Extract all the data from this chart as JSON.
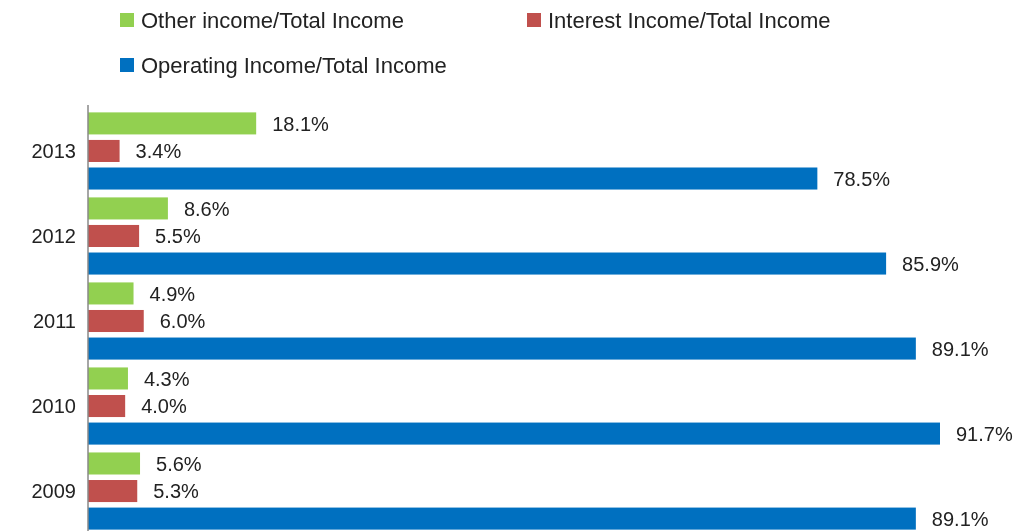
{
  "chart_data": {
    "type": "bar",
    "orientation": "horizontal",
    "categories": [
      "2013",
      "2012",
      "2011",
      "2010",
      "2009"
    ],
    "legend": "top",
    "series": [
      {
        "name": "Other income/Total Income",
        "color": "#92d050",
        "values": [
          18.1,
          8.6,
          4.9,
          4.3,
          5.6
        ],
        "value_labels": [
          "18.1%",
          "8.6%",
          "4.9%",
          "4.3%",
          "5.6%"
        ]
      },
      {
        "name": "Interest Income/Total Income",
        "color": "#c0504d",
        "values": [
          3.4,
          5.5,
          6.0,
          4.0,
          5.3
        ],
        "value_labels": [
          "3.4%",
          "5.5%",
          "6.0%",
          "4.0%",
          "5.3%"
        ]
      },
      {
        "name": "Operating Income/Total Income",
        "color": "#0070c0",
        "values": [
          78.5,
          85.9,
          89.1,
          91.7,
          89.1
        ],
        "value_labels": [
          "78.5%",
          "85.9%",
          "89.1%",
          "91.7%",
          "89.1%"
        ]
      }
    ]
  }
}
